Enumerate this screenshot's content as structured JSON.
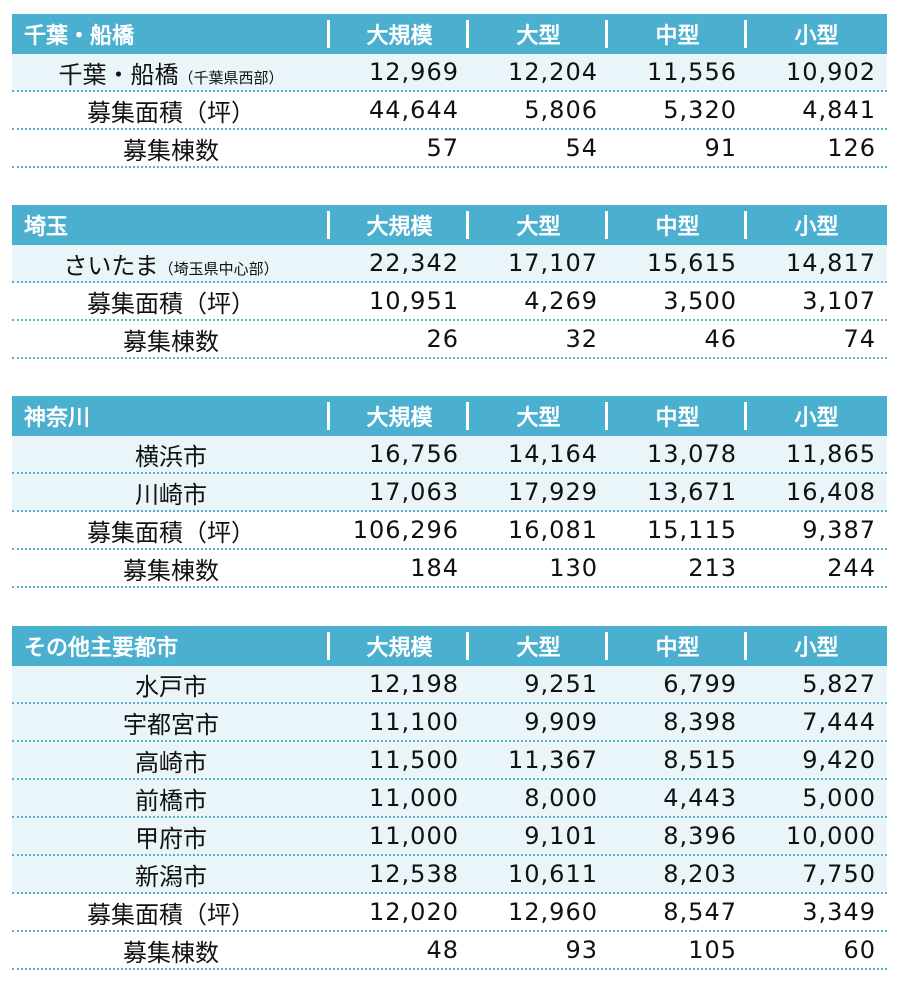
{
  "columns": [
    "大規模",
    "大型",
    "中型",
    "小型"
  ],
  "colors": {
    "header": "#4BAFCF",
    "highlight_row": "#E9F5F9",
    "separator": "#5AAFCB"
  },
  "sections": [
    {
      "title": "千葉・船橋",
      "rows": [
        {
          "label": "千葉・船橋",
          "sub": "（千葉県西部）",
          "hl": true,
          "values": [
            "12,969",
            "12,204",
            "11,556",
            "10,902"
          ]
        },
        {
          "label": "募集面積（坪）",
          "values": [
            "44,644",
            "5,806",
            "5,320",
            "4,841"
          ]
        },
        {
          "label": "募集棟数",
          "values": [
            "57",
            "54",
            "91",
            "126"
          ]
        }
      ]
    },
    {
      "title": "埼玉",
      "rows": [
        {
          "label": "さいたま",
          "sub": "（埼玉県中心部）",
          "hl": true,
          "values": [
            "22,342",
            "17,107",
            "15,615",
            "14,817"
          ]
        },
        {
          "label": "募集面積（坪）",
          "values": [
            "10,951",
            "4,269",
            "3,500",
            "3,107"
          ]
        },
        {
          "label": "募集棟数",
          "values": [
            "26",
            "32",
            "46",
            "74"
          ]
        }
      ]
    },
    {
      "title": "神奈川",
      "rows": [
        {
          "label": "横浜市",
          "hl": true,
          "values": [
            "16,756",
            "14,164",
            "13,078",
            "11,865"
          ]
        },
        {
          "label": "川崎市",
          "hl": true,
          "values": [
            "17,063",
            "17,929",
            "13,671",
            "16,408"
          ]
        },
        {
          "label": "募集面積（坪）",
          "values": [
            "106,296",
            "16,081",
            "15,115",
            "9,387"
          ]
        },
        {
          "label": "募集棟数",
          "values": [
            "184",
            "130",
            "213",
            "244"
          ]
        }
      ]
    },
    {
      "title": "その他主要都市",
      "rows": [
        {
          "label": "水戸市",
          "hl": true,
          "values": [
            "12,198",
            "9,251",
            "6,799",
            "5,827"
          ]
        },
        {
          "label": "宇都宮市",
          "hl": true,
          "values": [
            "11,100",
            "9,909",
            "8,398",
            "7,444"
          ]
        },
        {
          "label": "高崎市",
          "hl": true,
          "values": [
            "11,500",
            "11,367",
            "8,515",
            "9,420"
          ]
        },
        {
          "label": "前橋市",
          "hl": true,
          "values": [
            "11,000",
            "8,000",
            "4,443",
            "5,000"
          ]
        },
        {
          "label": "甲府市",
          "hl": true,
          "values": [
            "11,000",
            "9,101",
            "8,396",
            "10,000"
          ]
        },
        {
          "label": "新潟市",
          "hl": true,
          "values": [
            "12,538",
            "10,611",
            "8,203",
            "7,750"
          ]
        },
        {
          "label": "募集面積（坪）",
          "values": [
            "12,020",
            "12,960",
            "8,547",
            "3,349"
          ]
        },
        {
          "label": "募集棟数",
          "values": [
            "48",
            "93",
            "105",
            "60"
          ]
        }
      ]
    }
  ]
}
